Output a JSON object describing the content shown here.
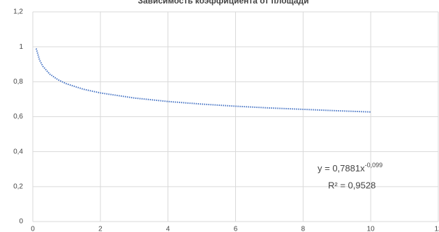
{
  "chart_data": {
    "type": "scatter",
    "title": "Зависимость коэффициента от площади",
    "x": [
      0.1,
      0.2,
      0.3,
      0.5,
      0.75,
      1,
      1.5,
      2,
      3,
      4,
      5,
      6,
      7,
      8,
      9,
      10
    ],
    "values": [
      0.99,
      0.924,
      0.888,
      0.844,
      0.811,
      0.788,
      0.757,
      0.736,
      0.707,
      0.687,
      0.672,
      0.66,
      0.65,
      0.642,
      0.634,
      0.627
    ],
    "color": "#4472c4",
    "xlim": [
      0,
      12
    ],
    "xticks": [
      0,
      2,
      4,
      6,
      8,
      10,
      12
    ],
    "ylim": [
      0,
      1.2
    ],
    "yticks": [
      0,
      {
        "value": 0.2,
        "label": "0,2"
      },
      {
        "value": 0.4,
        "label": "0,4"
      },
      {
        "value": 0.6,
        "label": "0,6"
      },
      {
        "value": 0.8,
        "label": "0,8"
      },
      1,
      {
        "value": 1.2,
        "label": "1,2"
      }
    ],
    "grid": true,
    "annotation": {
      "equation": "y = 0,7881x",
      "exponent": "-0,099",
      "r2": "R² = 0,9528"
    }
  }
}
